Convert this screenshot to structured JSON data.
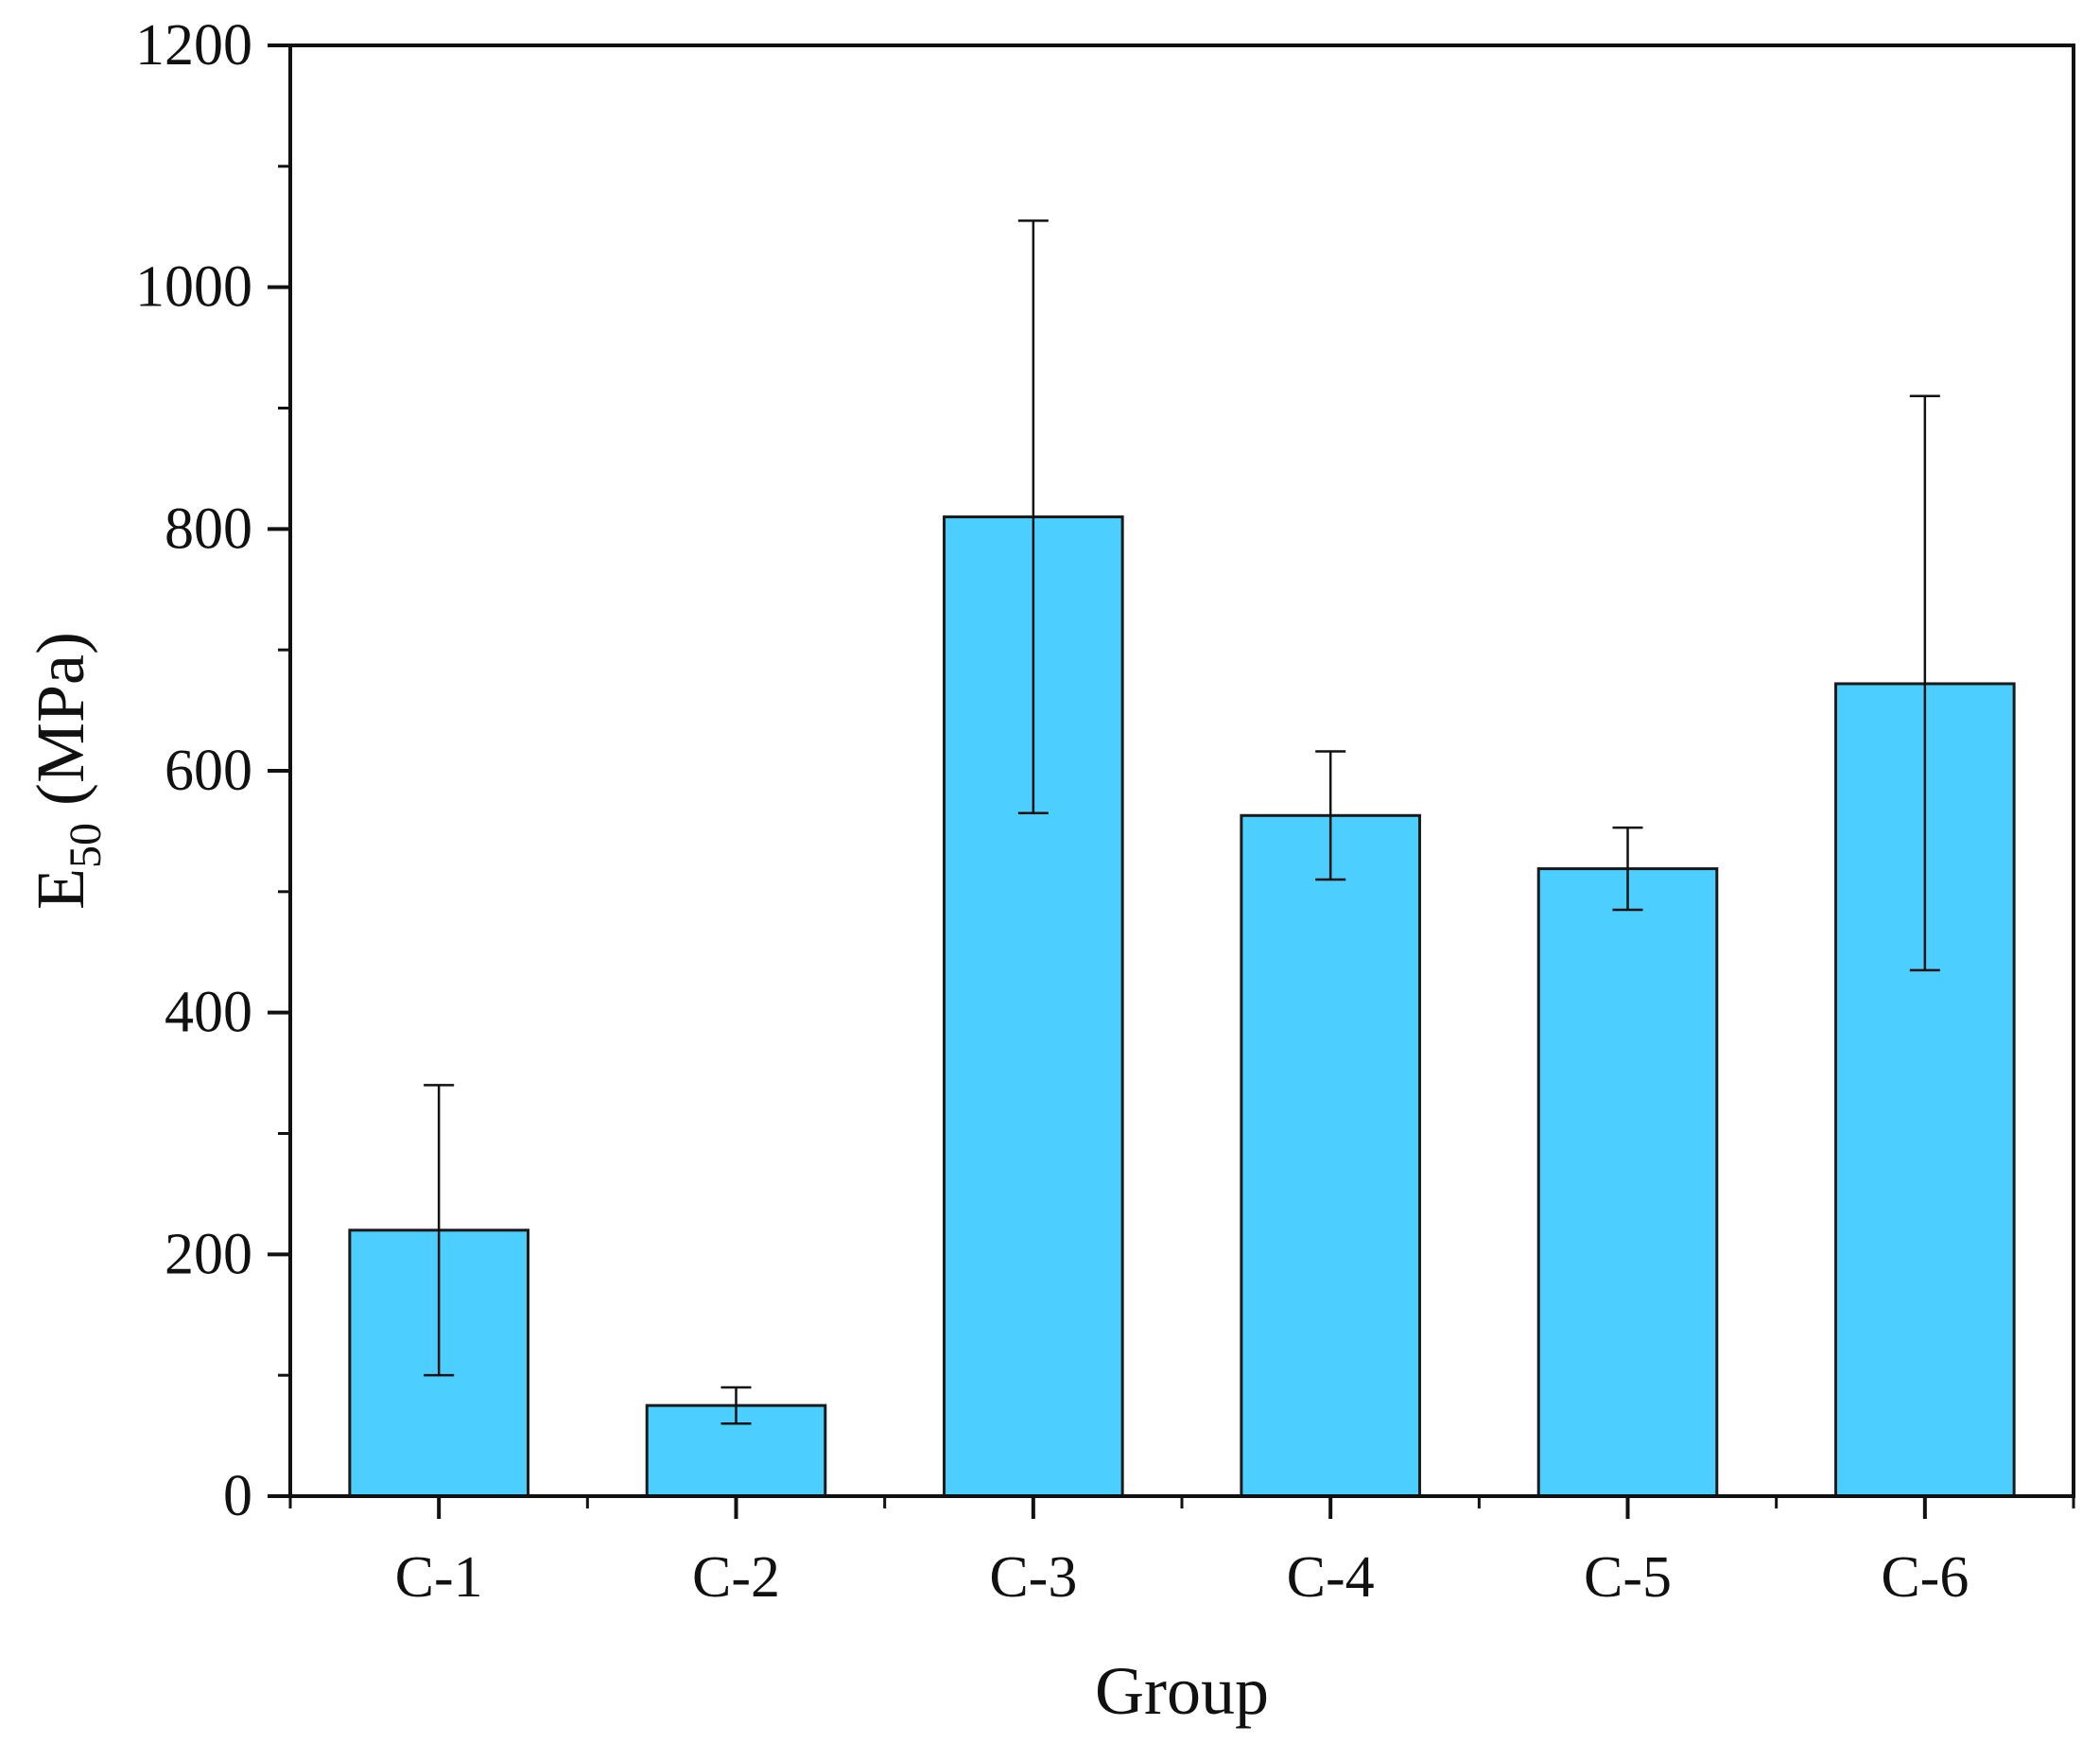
{
  "chart_data": {
    "type": "bar",
    "categories": [
      "C-1",
      "C-2",
      "C-3",
      "C-4",
      "C-5",
      "C-6"
    ],
    "values": [
      220,
      75,
      810,
      563,
      519,
      672
    ],
    "error_low": [
      100,
      60,
      565,
      510,
      485,
      435
    ],
    "error_high": [
      340,
      90,
      1055,
      616,
      553,
      910
    ],
    "xlabel": "Group",
    "ylabel_main": "E",
    "ylabel_sub": "50",
    "ylabel_unit": " (MPa)",
    "ylim": [
      0,
      1200
    ],
    "yticks": [
      0,
      200,
      400,
      600,
      800,
      1000,
      1200
    ],
    "grid": false,
    "bar_color": "#4ccffe",
    "bar_edge_color": "#1a1a1a",
    "axis_color": "#111111"
  }
}
